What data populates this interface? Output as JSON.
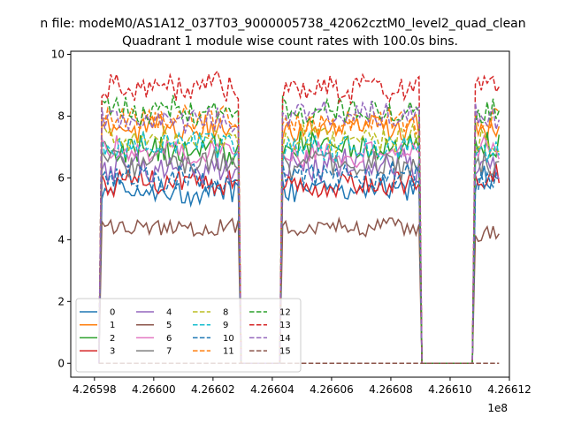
{
  "chart_data": {
    "type": "line",
    "suptitle": "n file: modeM0/AS1A12_037T03_9000005738_42062cztM0_level2_quad_clean",
    "title": "Quadrant 1 module wise count rates with 100.0s bins.",
    "xlabel": "",
    "ylabel": "",
    "x_offset_label": "1e8",
    "xlim": [
      4.265972,
      4.26612
    ],
    "ylim": [
      -0.45,
      10.1
    ],
    "x_ticks": [
      4.26598,
      4.266,
      4.26602,
      4.26604,
      4.26606,
      4.26608,
      4.2661,
      4.26612
    ],
    "x_tick_labels": [
      "4.26598",
      "4.26600",
      "4.26602",
      "4.26604",
      "4.26606",
      "4.26608",
      "4.26610",
      "4.26612"
    ],
    "y_ticks": [
      0,
      2,
      4,
      6,
      8,
      10
    ],
    "y_tick_labels": [
      "0",
      "2",
      "4",
      "6",
      "8",
      "10"
    ],
    "segments": [
      {
        "x_start": 4.265982,
        "x_end": 4.266029
      },
      {
        "x_start": 4.266043,
        "x_end": 4.26609
      },
      {
        "x_start": 4.266108,
        "x_end": 4.266117
      }
    ],
    "gaps": [
      {
        "x_start": 4.266031,
        "x_end": 4.266041
      },
      {
        "x_start": 4.266092,
        "x_end": 4.266106
      }
    ],
    "legend": {
      "placement": "lower-left",
      "columns": 4
    },
    "series": [
      {
        "name": "0",
        "color": "#1f77b4",
        "dash": "solid",
        "levels": [
          5.6,
          5.7,
          5.9
        ],
        "amp": 0.4
      },
      {
        "name": "1",
        "color": "#ff7f0e",
        "dash": "solid",
        "levels": [
          7.6,
          7.6,
          7.6
        ],
        "amp": 0.4
      },
      {
        "name": "2",
        "color": "#2ca02c",
        "dash": "solid",
        "levels": [
          6.9,
          7.0,
          7.2
        ],
        "amp": 0.45
      },
      {
        "name": "3",
        "color": "#d62728",
        "dash": "solid",
        "levels": [
          5.9,
          5.8,
          6.1
        ],
        "amp": 0.4
      },
      {
        "name": "4",
        "color": "#9467bd",
        "dash": "solid",
        "levels": [
          6.3,
          6.4,
          6.3
        ],
        "amp": 0.45
      },
      {
        "name": "5",
        "color": "#8c564b",
        "dash": "solid",
        "levels": [
          4.4,
          4.4,
          4.2
        ],
        "amp": 0.25
      },
      {
        "name": "6",
        "color": "#e377c2",
        "dash": "solid",
        "levels": [
          6.9,
          6.8,
          6.9
        ],
        "amp": 0.4
      },
      {
        "name": "7",
        "color": "#7f7f7f",
        "dash": "solid",
        "levels": [
          6.5,
          6.4,
          6.4
        ],
        "amp": 0.4
      },
      {
        "name": "8",
        "color": "#bcbd22",
        "dash": "dashed",
        "levels": [
          7.3,
          7.3,
          7.2
        ],
        "amp": 0.4
      },
      {
        "name": "9",
        "color": "#17becf",
        "dash": "dashed",
        "levels": [
          7.1,
          7.0,
          7.0
        ],
        "amp": 0.4
      },
      {
        "name": "10",
        "color": "#1f77b4",
        "dash": "dashed",
        "levels": [
          6.0,
          6.1,
          6.0
        ],
        "amp": 0.4
      },
      {
        "name": "11",
        "color": "#ff7f0e",
        "dash": "dashed",
        "levels": [
          7.9,
          7.8,
          7.9
        ],
        "amp": 0.4
      },
      {
        "name": "12",
        "color": "#2ca02c",
        "dash": "dashed",
        "levels": [
          8.2,
          8.2,
          8.1
        ],
        "amp": 0.4
      },
      {
        "name": "13",
        "color": "#d62728",
        "dash": "dashed",
        "levels": [
          8.9,
          8.9,
          8.9
        ],
        "amp": 0.45
      },
      {
        "name": "14",
        "color": "#9467bd",
        "dash": "dashed",
        "levels": [
          7.9,
          8.1,
          8.0
        ],
        "amp": 0.4
      },
      {
        "name": "15",
        "color": "#8c564b",
        "dash": "dashed",
        "levels": [
          0.0,
          0.0,
          0.0
        ],
        "amp": 0.0
      }
    ]
  }
}
